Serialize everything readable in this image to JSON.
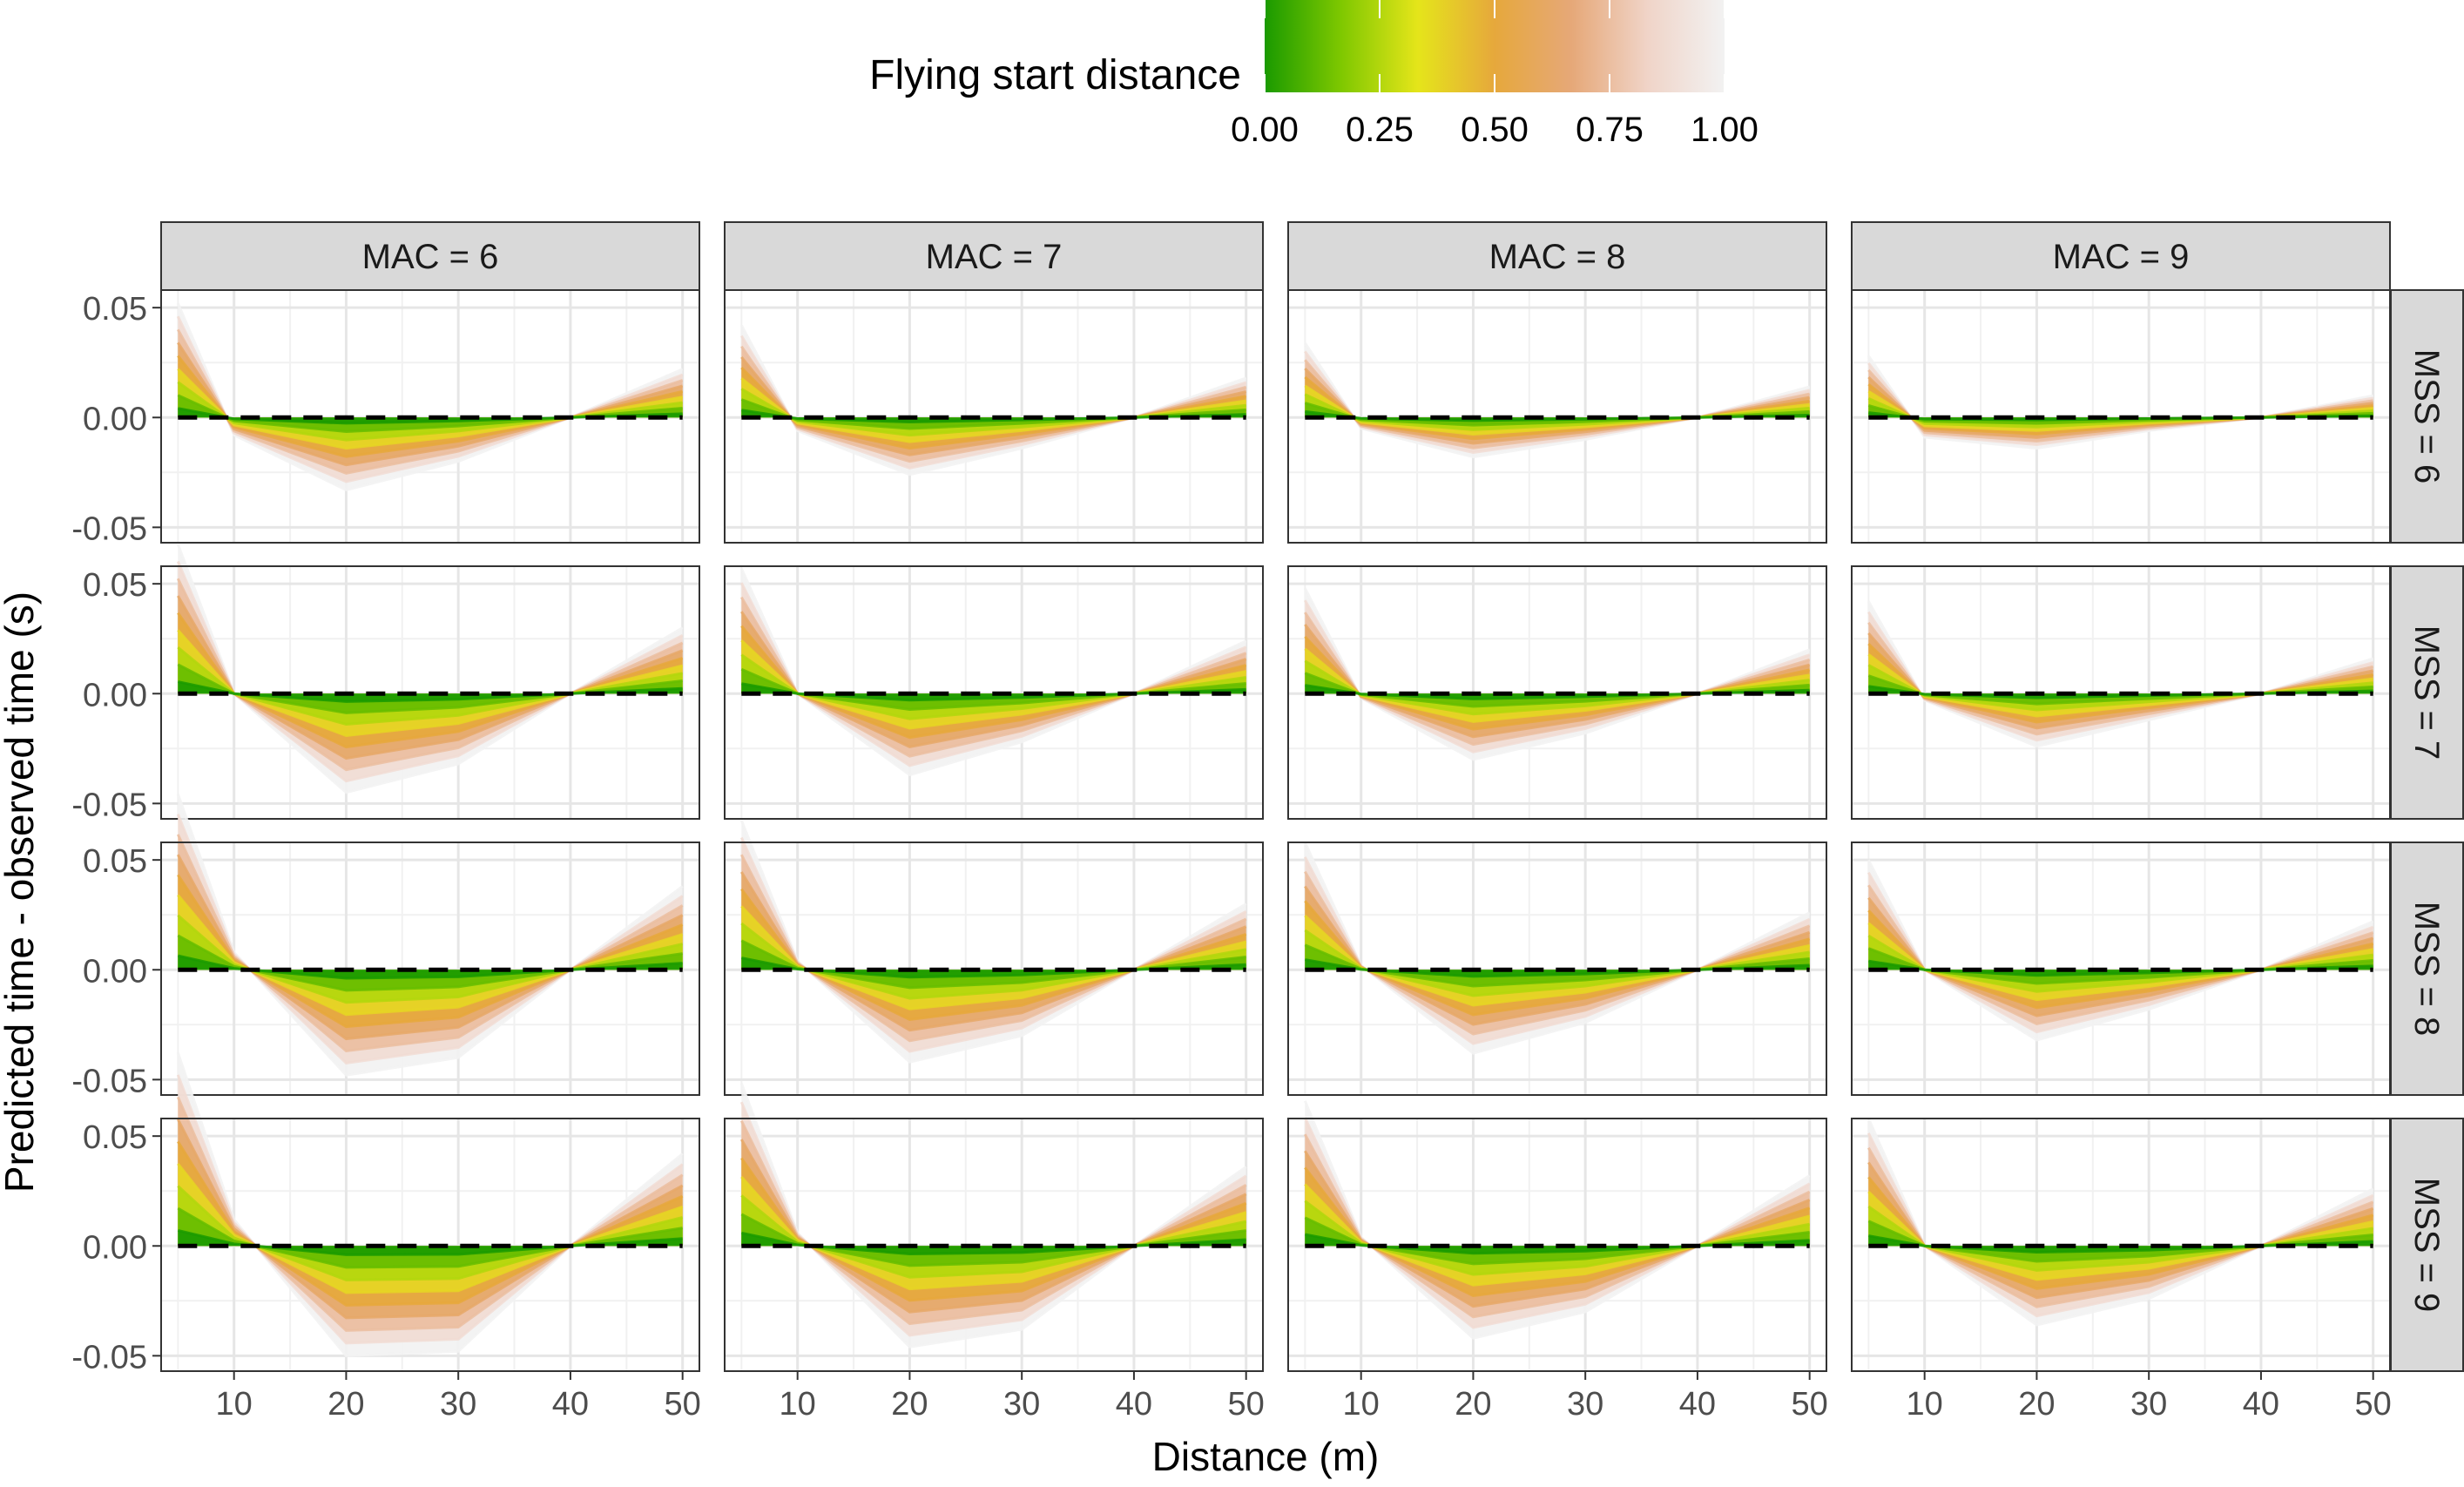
{
  "chart_data": {
    "type": "line",
    "title": "",
    "xlabel": "Distance (m)",
    "ylabel": "Predicted time - observed time (s)",
    "facet_cols": {
      "prefix": "MAC =  ",
      "values": [
        "6",
        "7",
        "8",
        "9"
      ],
      "labels": [
        "MAC =  6",
        "MAC =  7",
        "MAC =  8",
        "MAC =  9"
      ]
    },
    "facet_rows": {
      "prefix": "MSS = ",
      "values": [
        "6",
        "7",
        "8",
        "9"
      ],
      "labels": [
        "MSS = 6",
        "MSS = 7",
        "MSS = 8",
        "MSS = 9"
      ]
    },
    "x_ticks": [
      10,
      20,
      30,
      40,
      50
    ],
    "x_tick_labels": [
      "10",
      "20",
      "30",
      "40",
      "50"
    ],
    "xlim": [
      3.5,
      51.5
    ],
    "y_ticks": [
      -0.05,
      0,
      0.05
    ],
    "y_tick_labels": [
      "-0.05",
      "0.00",
      "0.05"
    ],
    "ylim": [
      -0.057,
      0.058
    ],
    "x": [
      5,
      10,
      20,
      30,
      40,
      50
    ],
    "reference_line": {
      "y": 0,
      "style": "dashed",
      "color": "#000000"
    },
    "legend": {
      "title": "Flying start distance",
      "position": "top",
      "ticks": [
        0,
        0.25,
        0.5,
        0.75,
        1
      ],
      "tick_labels": [
        "0.00",
        "0.25",
        "0.50",
        "0.75",
        "1.00"
      ],
      "colors": [
        "#1a9a00",
        "#7fc800",
        "#e5e51a",
        "#e6a83c",
        "#e6a878",
        "#f0d4c8",
        "#f2f2f2"
      ]
    },
    "series_levels": [
      0,
      0.125,
      0.25,
      0.375,
      0.5,
      0.625,
      0.75,
      0.875,
      1.0
    ],
    "panels": [
      [
        {
          "y_max": [
            0.052,
            -0.008,
            -0.033,
            -0.02,
            0.0,
            0.022
          ]
        },
        {
          "y_max": [
            0.042,
            -0.006,
            -0.026,
            -0.014,
            0.0,
            0.018
          ]
        },
        {
          "y_max": [
            0.034,
            -0.005,
            -0.018,
            -0.01,
            0.0,
            0.014
          ]
        },
        {
          "y_max": [
            0.028,
            -0.009,
            -0.014,
            -0.006,
            0.0,
            0.01
          ]
        }
      ],
      [
        {
          "y_max": [
            0.068,
            0.0,
            -0.045,
            -0.032,
            0.0,
            0.03
          ]
        },
        {
          "y_max": [
            0.057,
            0.0,
            -0.037,
            -0.022,
            0.0,
            0.024
          ]
        },
        {
          "y_max": [
            0.048,
            -0.002,
            -0.03,
            -0.018,
            0.0,
            0.02
          ]
        },
        {
          "y_max": [
            0.042,
            -0.003,
            -0.024,
            -0.012,
            0.0,
            0.016
          ]
        }
      ],
      [
        {
          "y_max": [
            0.08,
            0.008,
            -0.048,
            -0.04,
            0.0,
            0.038
          ]
        },
        {
          "y_max": [
            0.068,
            0.004,
            -0.042,
            -0.03,
            0.0,
            0.03
          ]
        },
        {
          "y_max": [
            0.058,
            0.002,
            -0.038,
            -0.024,
            0.0,
            0.026
          ]
        },
        {
          "y_max": [
            0.05,
            0.0,
            -0.032,
            -0.018,
            0.0,
            0.022
          ]
        }
      ],
      [
        {
          "y_max": [
            0.088,
            0.012,
            -0.05,
            -0.048,
            0.0,
            0.042
          ]
        },
        {
          "y_max": [
            0.074,
            0.006,
            -0.046,
            -0.038,
            0.0,
            0.036
          ]
        },
        {
          "y_max": [
            0.066,
            0.004,
            -0.042,
            -0.03,
            0.0,
            0.032
          ]
        },
        {
          "y_max": [
            0.058,
            0.0,
            -0.036,
            -0.024,
            0.0,
            0.026
          ]
        }
      ]
    ]
  }
}
